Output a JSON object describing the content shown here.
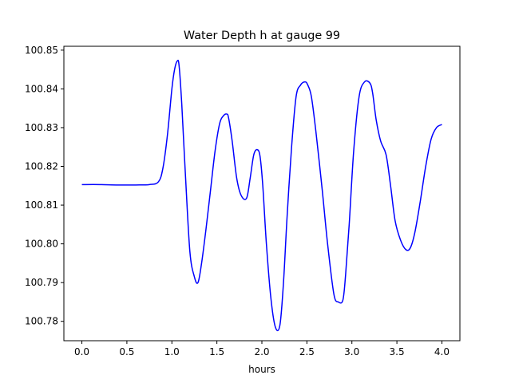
{
  "chart_data": {
    "type": "line",
    "title": "Water Depth h at gauge 99",
    "xlabel": "hours",
    "ylabel": "",
    "xlim": [
      -0.2,
      4.2
    ],
    "ylim": [
      100.775,
      100.851
    ],
    "xticks": [
      0.0,
      0.5,
      1.0,
      1.5,
      2.0,
      2.5,
      3.0,
      3.5,
      4.0
    ],
    "xtick_labels": [
      "0.0",
      "0.5",
      "1.0",
      "1.5",
      "2.0",
      "2.5",
      "3.0",
      "3.5",
      "4.0"
    ],
    "yticks": [
      100.78,
      100.79,
      100.8,
      100.81,
      100.82,
      100.83,
      100.84,
      100.85
    ],
    "ytick_labels": [
      "100.78",
      "100.79",
      "100.80",
      "100.81",
      "100.82",
      "100.83",
      "100.84",
      "100.85"
    ],
    "grid": false,
    "series": [
      {
        "color": "#0000ff",
        "x": [
          0.0,
          0.2,
          0.4,
          0.6,
          0.75,
          0.85,
          0.9,
          0.95,
          1.0,
          1.03,
          1.06,
          1.08,
          1.11,
          1.15,
          1.2,
          1.25,
          1.29,
          1.33,
          1.38,
          1.43,
          1.48,
          1.53,
          1.57,
          1.61,
          1.63,
          1.67,
          1.72,
          1.77,
          1.83,
          1.87,
          1.91,
          1.95,
          1.98,
          2.01,
          2.05,
          2.1,
          2.15,
          2.2,
          2.24,
          2.28,
          2.33,
          2.38,
          2.43,
          2.48,
          2.51,
          2.55,
          2.6,
          2.67,
          2.73,
          2.8,
          2.85,
          2.9,
          2.93,
          2.97,
          3.02,
          3.08,
          3.14,
          3.2,
          3.23,
          3.27,
          3.32,
          3.38,
          3.43,
          3.48,
          3.54,
          3.6,
          3.65,
          3.7,
          3.76,
          3.82,
          3.88,
          3.94,
          4.0
        ],
        "y": [
          100.8153,
          100.8153,
          100.8152,
          100.8152,
          100.8153,
          100.816,
          100.8195,
          100.828,
          100.84,
          100.845,
          100.8472,
          100.846,
          100.836,
          100.818,
          100.798,
          100.7915,
          100.79,
          100.795,
          100.804,
          100.814,
          100.824,
          100.831,
          100.833,
          100.8335,
          100.8325,
          100.8265,
          100.817,
          100.8125,
          100.8118,
          100.817,
          100.823,
          100.8243,
          100.8225,
          100.815,
          100.8,
          100.786,
          100.7785,
          100.779,
          100.79,
          100.807,
          100.825,
          100.838,
          100.841,
          100.8418,
          100.841,
          100.838,
          100.829,
          100.814,
          100.8,
          100.787,
          100.785,
          100.7855,
          100.792,
          100.805,
          100.824,
          100.838,
          100.8418,
          100.8415,
          100.839,
          100.832,
          100.8265,
          100.823,
          100.815,
          100.806,
          100.801,
          100.7985,
          100.799,
          100.803,
          100.811,
          100.82,
          100.827,
          100.83,
          100.8308
        ]
      }
    ]
  }
}
